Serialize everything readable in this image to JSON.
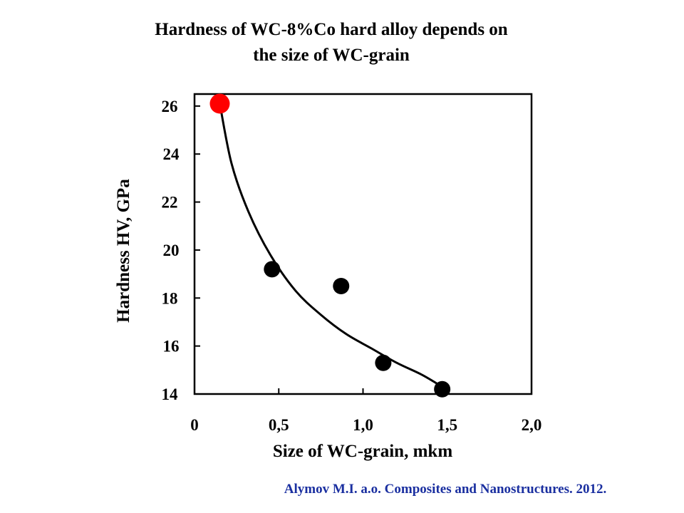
{
  "chart_data": {
    "type": "scatter",
    "title_line1": "Hardness of WC-8%Co hard alloy depends on",
    "title_line2": "the size of WC-grain",
    "xlabel": "Size of WC-grain,  mkm",
    "ylabel": "Hardness HV, GPa",
    "xlim": [
      0,
      2.0
    ],
    "ylim": [
      14,
      26.5
    ],
    "x_ticks": [
      {
        "value": 0,
        "label": "0"
      },
      {
        "value": 0.5,
        "label": "0,5"
      },
      {
        "value": 1.0,
        "label": "1,0"
      },
      {
        "value": 1.5,
        "label": "1,5"
      },
      {
        "value": 2.0,
        "label": "2,0"
      }
    ],
    "y_ticks": [
      {
        "value": 14,
        "label": "14"
      },
      {
        "value": 16,
        "label": "16"
      },
      {
        "value": 18,
        "label": "18"
      },
      {
        "value": 20,
        "label": "20"
      },
      {
        "value": 22,
        "label": "22"
      },
      {
        "value": 24,
        "label": "24"
      },
      {
        "value": 26,
        "label": "26"
      }
    ],
    "points": [
      {
        "x": 0.15,
        "y": 26.1,
        "color": "#ff0000"
      },
      {
        "x": 0.46,
        "y": 19.2,
        "color": "#000000"
      },
      {
        "x": 0.87,
        "y": 18.5,
        "color": "#000000"
      },
      {
        "x": 1.12,
        "y": 15.3,
        "color": "#000000"
      },
      {
        "x": 1.47,
        "y": 14.2,
        "color": "#000000"
      }
    ],
    "fit_curve": [
      {
        "x": 0.15,
        "y": 26.1
      },
      {
        "x": 0.22,
        "y": 23.6
      },
      {
        "x": 0.32,
        "y": 21.6
      },
      {
        "x": 0.45,
        "y": 19.8
      },
      {
        "x": 0.6,
        "y": 18.3
      },
      {
        "x": 0.75,
        "y": 17.3
      },
      {
        "x": 0.9,
        "y": 16.5
      },
      {
        "x": 1.05,
        "y": 15.9
      },
      {
        "x": 1.2,
        "y": 15.3
      },
      {
        "x": 1.35,
        "y": 14.8
      },
      {
        "x": 1.47,
        "y": 14.3
      }
    ]
  },
  "citation": "Alymov M.I. a.o. Composites and Nanostructures. 2012."
}
